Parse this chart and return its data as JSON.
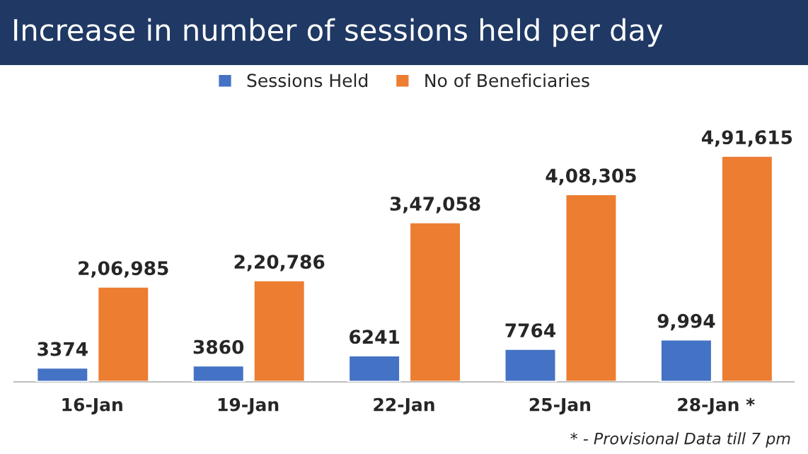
{
  "chart_data": {
    "type": "bar",
    "title": "Increase in number of sessions held per day",
    "categories": [
      "16-Jan",
      "19-Jan",
      "22-Jan",
      "25-Jan",
      "28-Jan *"
    ],
    "series": [
      {
        "name": "Sessions Held",
        "color": "#4472c4",
        "axis": "y2",
        "values": [
          3374,
          3860,
          6241,
          7764,
          9994
        ],
        "value_labels": [
          "3374",
          "3860",
          "6241",
          "7764",
          "9,994"
        ]
      },
      {
        "name": "No of Beneficiaries",
        "color": "#ed7d31",
        "values": [
          206985,
          220786,
          347058,
          408305,
          491615
        ],
        "value_labels": [
          "2,06,985",
          "2,20,786",
          "3,47,058",
          "4,08,305",
          "4,91,615"
        ]
      }
    ],
    "tick_labels": false,
    "grid": false,
    "legend": "top",
    "annotations": [
      "* - Provisional Data till 7 pm"
    ]
  }
}
